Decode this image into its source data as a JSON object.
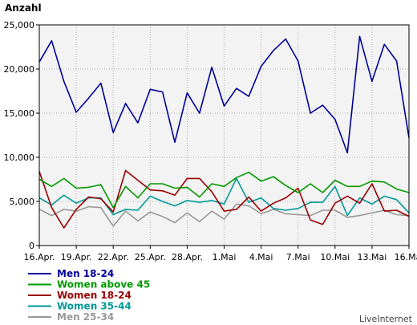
{
  "chart_data": {
    "type": "line",
    "ylabel": "Anzahl",
    "xlabel": "",
    "ylim": [
      0,
      25000
    ],
    "yticks": [
      0,
      5000,
      10000,
      15000,
      20000,
      25000
    ],
    "ytick_labels": [
      "0",
      "5,000",
      "10,000",
      "15,000",
      "20,000",
      "25,000"
    ],
    "x": [
      "16.Apr.",
      "17.Apr.",
      "18.Apr.",
      "19.Apr.",
      "20.Apr.",
      "21.Apr.",
      "22.Apr.",
      "23.Apr.",
      "24.Apr.",
      "25.Apr.",
      "26.Apr.",
      "27.Apr.",
      "28.Apr.",
      "29.Apr.",
      "30.Apr.",
      "1.Mai",
      "2.Mai",
      "3.Mai",
      "4.Mai",
      "5.Mai",
      "6.Mai",
      "7.Mai",
      "8.Mai",
      "9.Mai",
      "10.Mai",
      "11.Mai",
      "12.Mai",
      "13.Mai",
      "14.Mai",
      "15.Mai",
      "16.Mai"
    ],
    "xtick_labels": [
      "16.Apr.",
      "19.Apr.",
      "22.Apr.",
      "25.Apr.",
      "28.Apr.",
      "1.Mai",
      "4.Mai",
      "7.Mai",
      "10.Mai",
      "13.Mai",
      "16.Mai"
    ],
    "grid": true,
    "legend_position": "bottom-left",
    "series": [
      {
        "name": "Men 18-24",
        "color": "#000099",
        "values": [
          20800,
          23200,
          18600,
          15100,
          16700,
          18400,
          12800,
          16100,
          13900,
          17700,
          17400,
          11700,
          17300,
          15000,
          20200,
          15800,
          17800,
          16900,
          20300,
          22100,
          23400,
          20900,
          15000,
          15900,
          14300,
          10500,
          23700,
          18600,
          22800,
          20900,
          12200
        ]
      },
      {
        "name": "Women above 45",
        "color": "#009900",
        "values": [
          7500,
          6700,
          7600,
          6500,
          6600,
          6900,
          4300,
          6700,
          5400,
          7000,
          7000,
          6500,
          6600,
          5500,
          7000,
          6700,
          7700,
          8300,
          7300,
          7800,
          6800,
          6000,
          7000,
          6000,
          7400,
          6700,
          6700,
          7300,
          7200,
          6400,
          6000
        ]
      },
      {
        "name": "Women 18-24",
        "color": "#990000",
        "values": [
          8400,
          4300,
          2000,
          4100,
          5500,
          5300,
          3800,
          8500,
          7400,
          6300,
          6200,
          5700,
          7600,
          7600,
          6100,
          3900,
          4100,
          5500,
          3900,
          4800,
          5400,
          6500,
          2900,
          2400,
          4800,
          5600,
          4800,
          7000,
          3900,
          4000,
          3300
        ]
      },
      {
        "name": "Women 35-44",
        "color": "#009999",
        "values": [
          5400,
          4600,
          5700,
          4800,
          5400,
          5400,
          3500,
          4100,
          4000,
          5600,
          5000,
          4500,
          5100,
          4900,
          5100,
          4700,
          7600,
          4900,
          5400,
          4200,
          4000,
          4200,
          4900,
          4900,
          6700,
          3400,
          5400,
          4700,
          5600,
          5200,
          3700
        ]
      },
      {
        "name": "Men 25-34",
        "color": "#999999",
        "values": [
          4100,
          3400,
          4100,
          3900,
          4400,
          4300,
          2200,
          3900,
          2800,
          3800,
          3300,
          2600,
          3700,
          2700,
          3900,
          3000,
          4700,
          4500,
          3600,
          4100,
          3600,
          3500,
          3400,
          4000,
          4000,
          3200,
          3400,
          3700,
          4000,
          3500,
          3400
        ]
      }
    ]
  },
  "branding": {
    "label": "LiveInternet"
  }
}
